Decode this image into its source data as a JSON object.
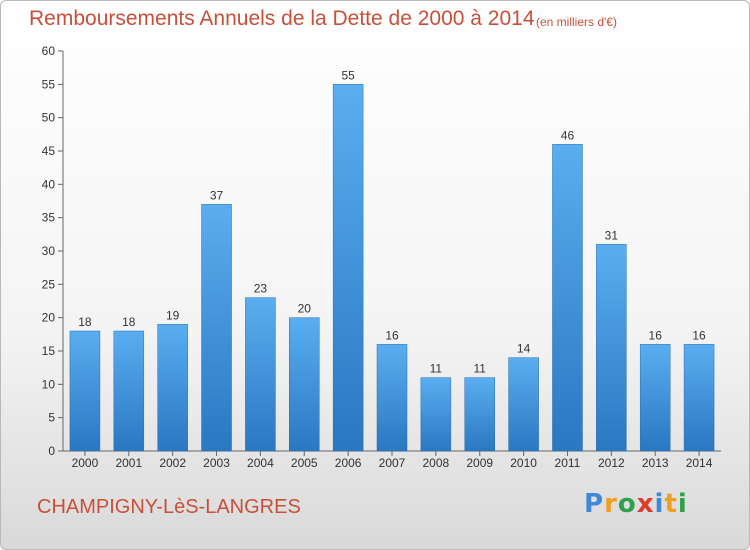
{
  "chart_data": {
    "type": "bar",
    "title": "Remboursements Annuels de la Dette de 2000 à 2014",
    "unit_label": "(en milliers d'€)",
    "categories": [
      "2000",
      "2001",
      "2002",
      "2003",
      "2004",
      "2005",
      "2006",
      "2007",
      "2008",
      "2009",
      "2010",
      "2011",
      "2012",
      "2013",
      "2014"
    ],
    "values": [
      18,
      18,
      19,
      37,
      23,
      20,
      55,
      16,
      11,
      11,
      14,
      46,
      31,
      16,
      16
    ],
    "ylim": [
      0,
      60
    ],
    "yticks": [
      0,
      5,
      10,
      15,
      20,
      25,
      30,
      35,
      40,
      45,
      50,
      55,
      60
    ],
    "grid": false,
    "bar_color": "#4a9fe0",
    "data_labels": true
  },
  "footer": {
    "commune": "CHAMPIGNY-LèS-LANGRES",
    "brand": [
      "P",
      "r",
      "o",
      "x",
      "i",
      "t",
      "i"
    ],
    "brand_colors": [
      "#3f88d8",
      "#f0a020",
      "#2fa04a",
      "#e03a2a",
      "#3f88d8",
      "#f0a020",
      "#2fa04a"
    ]
  },
  "colors": {
    "title": "#c8503a"
  }
}
